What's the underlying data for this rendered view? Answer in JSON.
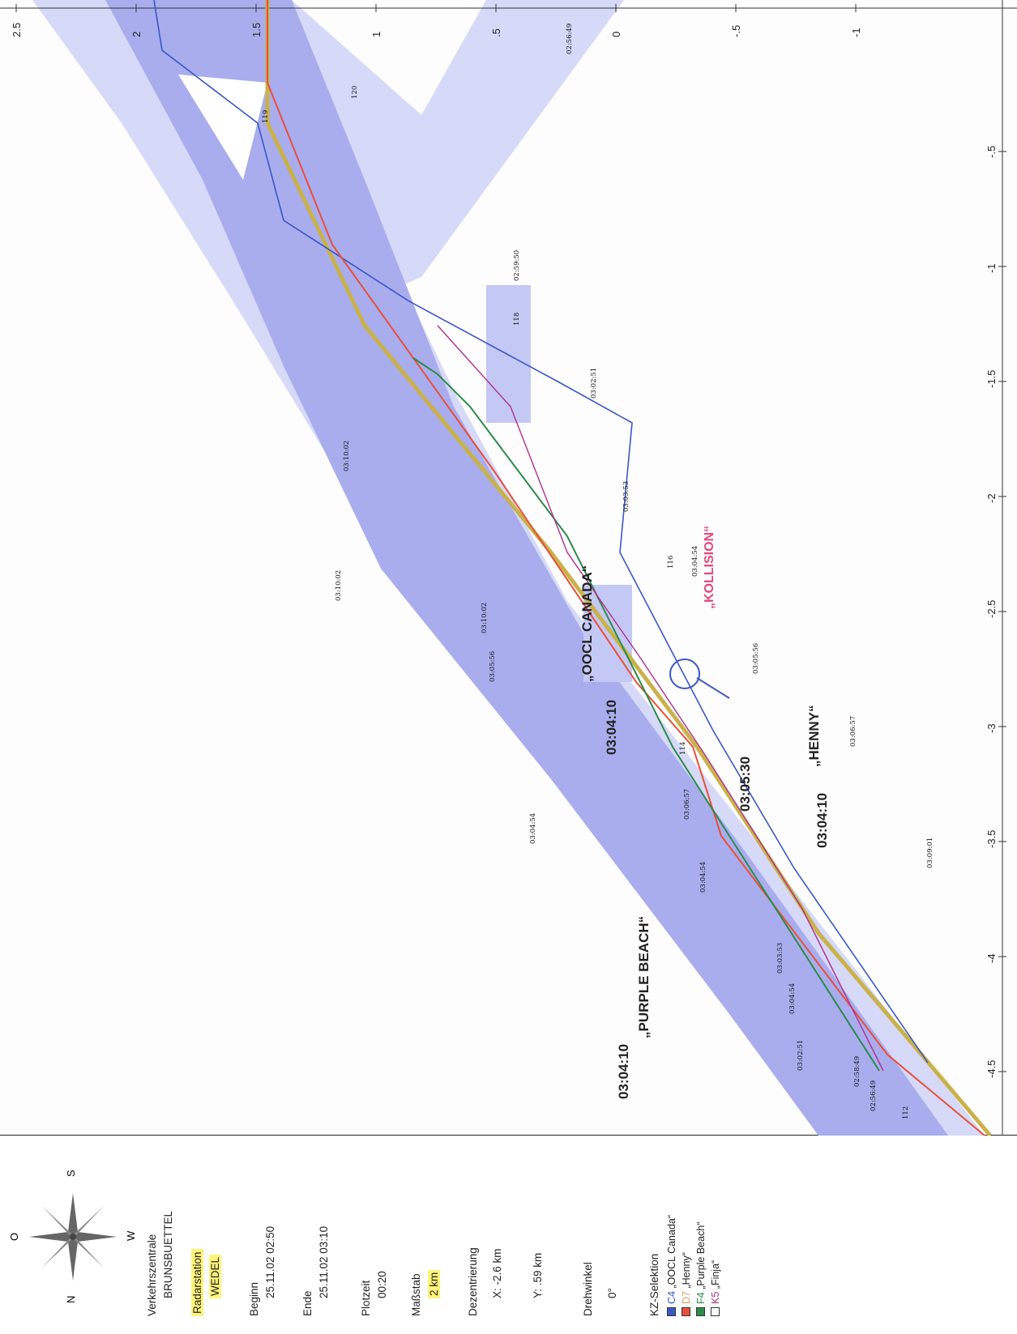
{
  "legend": {
    "verkehrszentrale_label": "Verkehrszentrale",
    "verkehrszentrale_value": "BRUNSBUETTEL",
    "radarstation_label": "Radarstation",
    "radarstation_value": "WEDEL",
    "beginn_label": "Beginn",
    "beginn_value": "25.11.02 02:50",
    "ende_label": "Ende",
    "ende_value": "25.11.02 03:10",
    "plotzeit_label": "Plotzeit",
    "plotzeit_value": "00:20",
    "massstab_label": "Maßstab",
    "massstab_value": "2 km",
    "dezentrierung_label": "Dezentrierung",
    "dezentrierung_x": "X:  -2.6 km",
    "dezentrierung_y": "Y:  .59 km",
    "drehwinkel_label": "Drehwinkel",
    "drehwinkel_value": "0°",
    "kz_label": "KZ-Selektion",
    "kz_items": [
      {
        "code": "C4",
        "name": "„OOCL Canada“",
        "color": "#3a57c8"
      },
      {
        "code": "D7",
        "name": "„Henny“",
        "color": "#e8503a"
      },
      {
        "code": "F4",
        "name": "„Purple Beach“",
        "color": "#2e8a4a"
      },
      {
        "code": "K5",
        "name": "„Finja“",
        "color": "#b0308e"
      }
    ]
  },
  "compass": {
    "n": "N",
    "o": "O",
    "s": "S",
    "w": "W"
  },
  "axes": {
    "x_ticks": [
      "-.5",
      "-1",
      "-1.5",
      "-2",
      "-2.5",
      "-3",
      "-3.5",
      "-4",
      "-4.5"
    ],
    "y_ticks": [
      "2.5",
      "2",
      "1.5",
      "1",
      ".5",
      "0",
      "-.5",
      "-1"
    ]
  },
  "annotations": {
    "kollision": "„KOLLISION“",
    "collision_time": "03:05:30",
    "oocl_time": "03:04:10",
    "oocl_name": "„OOCL CANADA“",
    "henny_time": "03:04:10",
    "henny_name": "„HENNY“",
    "purple_time": "03:04:10",
    "purple_name": "„PURPLE BEACH“"
  },
  "buoys": [
    "120",
    "119",
    "118",
    "116",
    "114",
    "112"
  ],
  "timestamps": {
    "c4": [
      "02:56:49",
      "02:59:50",
      "03:02:51",
      "03:03:53",
      "03:04:54",
      "03:05:56",
      "03:06:57",
      "03:09:01"
    ],
    "d7": [
      "02:56:49",
      "03:04:54",
      "03:06:57",
      "03:10:02"
    ],
    "f4": [
      "02:58:49",
      "03:03:53",
      "03:04:54",
      "03:05:56",
      "03:10:02"
    ],
    "k5": [
      "03:02:51",
      "03:04:54",
      "03:10:02"
    ]
  },
  "colors": {
    "fairway_light": "#d3d6f7",
    "fairway_dark": "#a4a8ec",
    "oocl": "#3a57c8",
    "henny": "#e8503a",
    "purple_beach": "#2e8a4a",
    "finja": "#b0308e",
    "centerline": "#c9b24a"
  }
}
